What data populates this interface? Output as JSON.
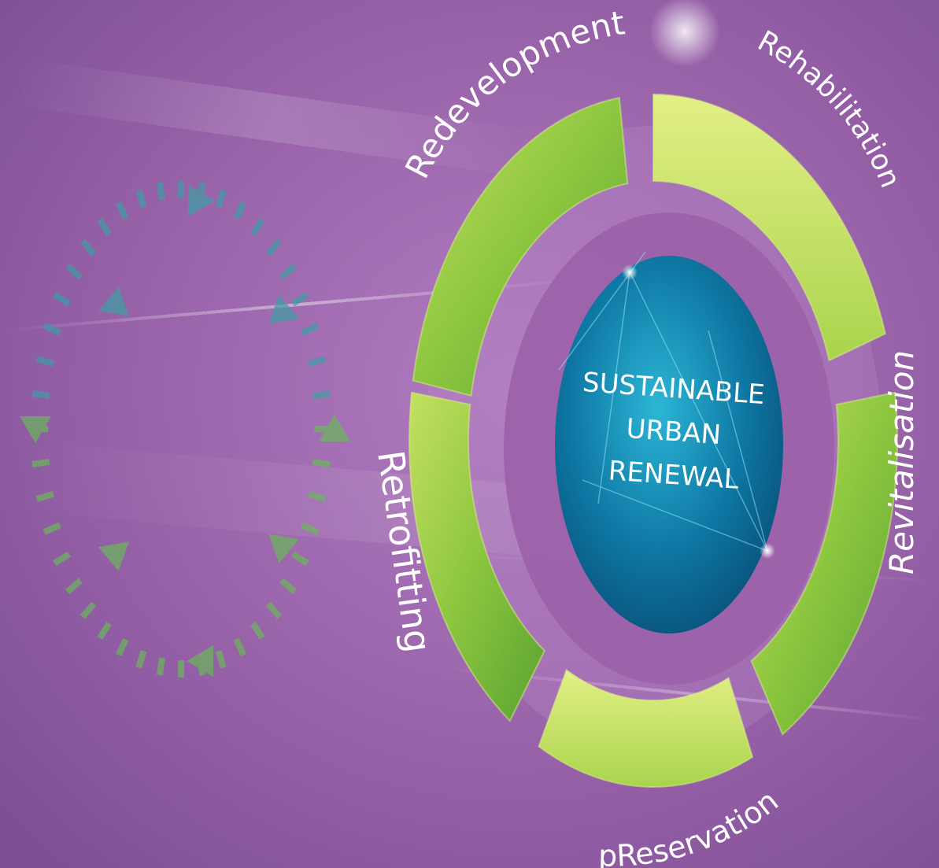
{
  "center": {
    "lines": [
      "SUSTAINABLE",
      "URBAN",
      "RENEWAL"
    ]
  },
  "segments": [
    {
      "label": "Redevelopment"
    },
    {
      "label": "Rehabilitation"
    },
    {
      "label": "Revitalisation"
    },
    {
      "label": "pReservation"
    },
    {
      "label": "Retrofitting"
    }
  ],
  "colors": {
    "background": "#9a5fa8",
    "ring_green": "#8cc63f",
    "ring_light_green": "#c7e26a",
    "center_blue": "#0d6c96",
    "cycle_teal": "#3e9fa4",
    "cycle_green": "#6ab85a"
  },
  "icons": [
    "cycle-arrows-icon"
  ]
}
